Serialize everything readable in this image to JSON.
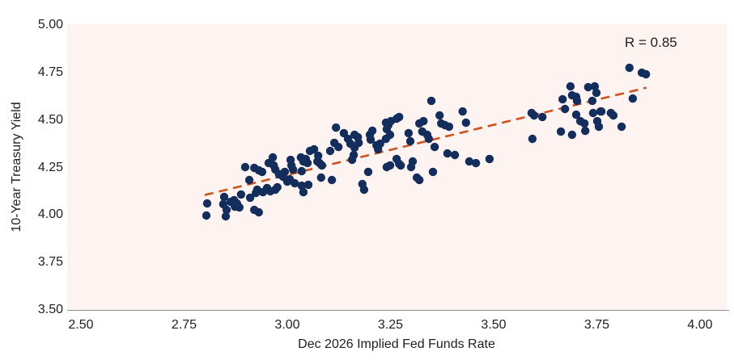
{
  "annotation": {
    "label": "R = 0.85"
  },
  "axes": {
    "x_title": "Dec 2026 Implied Fed Funds Rate",
    "y_title": "10-Year Treasury Yield"
  },
  "colors": {
    "point": "#132e5c",
    "trendline": "#d3501a",
    "plot_background": "#fdf4f2",
    "axis_line": "#8e8e8e",
    "text": "#1f1f1f"
  },
  "chart_data": {
    "type": "scatter",
    "title": "",
    "xlabel": "Dec 2026 Implied Fed Funds Rate",
    "ylabel": "10-Year Treasury Yield",
    "annotation": "R = 0.85",
    "legend": "none",
    "grid": false,
    "xlim": [
      2.4667,
      4.0647
    ],
    "ylim": [
      3.5,
      5.0043
    ],
    "x_tick_values": [
      2.5,
      2.75,
      3.0,
      3.25,
      3.5,
      3.75,
      4.0
    ],
    "x_tick_labels": [
      "2.50",
      "2.75",
      "3.00",
      "3.25",
      "3.50",
      "3.75",
      "4.00"
    ],
    "y_tick_values": [
      3.5,
      3.75,
      4.0,
      4.25,
      4.5,
      4.75,
      5.0
    ],
    "y_tick_labels": [
      "3.50",
      "3.75",
      "4.00",
      "4.25",
      "4.50",
      "4.75",
      "5.00"
    ],
    "trendline": {
      "style": "dashed",
      "x1": 2.8,
      "y1": 4.105,
      "x2": 3.87,
      "y2": 4.67
    },
    "points": [
      [
        2.806,
        4.061
      ],
      [
        2.804,
        3.997
      ],
      [
        2.847,
        4.095
      ],
      [
        2.845,
        4.057
      ],
      [
        2.853,
        4.027
      ],
      [
        2.851,
        3.993
      ],
      [
        2.863,
        4.069
      ],
      [
        2.871,
        4.078
      ],
      [
        2.878,
        4.061
      ],
      [
        2.884,
        4.04
      ],
      [
        2.873,
        4.044
      ],
      [
        2.888,
        4.108
      ],
      [
        2.898,
        4.252
      ],
      [
        2.908,
        4.184
      ],
      [
        2.91,
        4.091
      ],
      [
        2.92,
        4.248
      ],
      [
        2.924,
        4.116
      ],
      [
        2.927,
        4.133
      ],
      [
        2.931,
        4.235
      ],
      [
        2.939,
        4.227
      ],
      [
        2.92,
        4.027
      ],
      [
        2.931,
        4.014
      ],
      [
        2.941,
        4.12
      ],
      [
        2.951,
        4.142
      ],
      [
        2.955,
        4.274
      ],
      [
        2.965,
        4.303
      ],
      [
        2.967,
        4.261
      ],
      [
        2.971,
        4.239
      ],
      [
        2.959,
        4.125
      ],
      [
        2.971,
        4.133
      ],
      [
        2.976,
        4.146
      ],
      [
        2.98,
        4.214
      ],
      [
        2.99,
        4.201
      ],
      [
        2.994,
        4.227
      ],
      [
        3.0,
        4.176
      ],
      [
        3.006,
        4.188
      ],
      [
        3.008,
        4.29
      ],
      [
        3.01,
        4.261
      ],
      [
        3.014,
        4.239
      ],
      [
        3.018,
        4.167
      ],
      [
        3.033,
        4.303
      ],
      [
        3.039,
        4.282
      ],
      [
        3.045,
        4.295
      ],
      [
        3.049,
        4.274
      ],
      [
        3.035,
        4.231
      ],
      [
        3.035,
        4.154
      ],
      [
        3.039,
        4.12
      ],
      [
        3.051,
        4.159
      ],
      [
        3.055,
        4.337
      ],
      [
        3.065,
        4.346
      ],
      [
        3.073,
        4.282
      ],
      [
        3.078,
        4.274
      ],
      [
        3.082,
        4.197
      ],
      [
        3.075,
        4.312
      ],
      [
        3.084,
        4.261
      ],
      [
        3.104,
        4.337
      ],
      [
        3.108,
        4.184
      ],
      [
        3.118,
        4.46
      ],
      [
        3.114,
        4.38
      ],
      [
        3.124,
        4.358
      ],
      [
        3.137,
        4.431
      ],
      [
        3.147,
        4.401
      ],
      [
        3.153,
        4.375
      ],
      [
        3.163,
        4.422
      ],
      [
        3.171,
        4.41
      ],
      [
        3.173,
        4.38
      ],
      [
        3.163,
        4.354
      ],
      [
        3.161,
        4.316
      ],
      [
        3.157,
        4.291
      ],
      [
        3.182,
        4.163
      ],
      [
        3.186,
        4.133
      ],
      [
        3.196,
        4.227
      ],
      [
        3.2,
        4.422
      ],
      [
        3.206,
        4.444
      ],
      [
        3.202,
        4.397
      ],
      [
        3.216,
        4.367
      ],
      [
        3.22,
        4.346
      ],
      [
        3.225,
        4.376
      ],
      [
        3.239,
        4.486
      ],
      [
        3.245,
        4.473
      ],
      [
        3.251,
        4.494
      ],
      [
        3.241,
        4.452
      ],
      [
        3.249,
        4.422
      ],
      [
        3.239,
        4.401
      ],
      [
        3.241,
        4.252
      ],
      [
        3.249,
        4.261
      ],
      [
        3.265,
        4.507
      ],
      [
        3.271,
        4.516
      ],
      [
        3.265,
        4.295
      ],
      [
        3.271,
        4.269
      ],
      [
        3.275,
        4.261
      ],
      [
        3.294,
        4.431
      ],
      [
        3.298,
        4.388
      ],
      [
        3.3,
        4.252
      ],
      [
        3.304,
        4.282
      ],
      [
        3.314,
        4.197
      ],
      [
        3.32,
        4.482
      ],
      [
        3.33,
        4.494
      ],
      [
        3.327,
        4.439
      ],
      [
        3.339,
        4.422
      ],
      [
        3.349,
        4.601
      ],
      [
        3.343,
        4.401
      ],
      [
        3.357,
        4.358
      ],
      [
        3.353,
        4.227
      ],
      [
        3.32,
        4.184
      ],
      [
        3.369,
        4.524
      ],
      [
        3.373,
        4.482
      ],
      [
        3.382,
        4.473
      ],
      [
        3.392,
        4.465
      ],
      [
        3.388,
        4.324
      ],
      [
        3.406,
        4.316
      ],
      [
        3.425,
        4.545
      ],
      [
        3.433,
        4.486
      ],
      [
        3.441,
        4.282
      ],
      [
        3.457,
        4.273
      ],
      [
        3.49,
        4.295
      ],
      [
        3.592,
        4.537
      ],
      [
        3.598,
        4.524
      ],
      [
        3.618,
        4.516
      ],
      [
        3.594,
        4.401
      ],
      [
        3.667,
        4.609
      ],
      [
        3.673,
        4.558
      ],
      [
        3.686,
        4.677
      ],
      [
        3.69,
        4.63
      ],
      [
        3.7,
        4.622
      ],
      [
        3.702,
        4.601
      ],
      [
        3.729,
        4.673
      ],
      [
        3.745,
        4.677
      ],
      [
        3.749,
        4.643
      ],
      [
        3.739,
        4.601
      ],
      [
        3.7,
        4.528
      ],
      [
        3.71,
        4.494
      ],
      [
        3.72,
        4.482
      ],
      [
        3.722,
        4.443
      ],
      [
        3.741,
        4.537
      ],
      [
        3.751,
        4.494
      ],
      [
        3.759,
        4.545
      ],
      [
        3.663,
        4.439
      ],
      [
        3.69,
        4.422
      ],
      [
        3.784,
        4.537
      ],
      [
        3.79,
        4.524
      ],
      [
        3.829,
        4.775
      ],
      [
        3.859,
        4.749
      ],
      [
        3.869,
        4.741
      ],
      [
        3.837,
        4.613
      ],
      [
        3.761,
        4.545
      ],
      [
        3.81,
        4.465
      ],
      [
        3.755,
        4.465
      ]
    ]
  }
}
